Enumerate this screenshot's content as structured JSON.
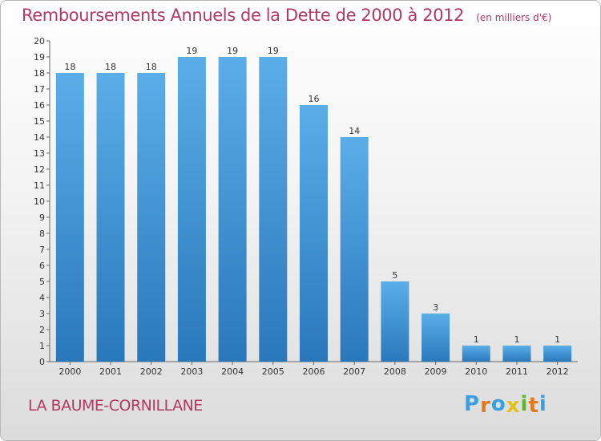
{
  "chart_data": {
    "type": "bar",
    "title": "Remboursements Annuels de la Dette de 2000 à 2012",
    "subtitle": "(en milliers d'€)",
    "categories": [
      "2000",
      "2001",
      "2002",
      "2003",
      "2004",
      "2005",
      "2006",
      "2007",
      "2008",
      "2009",
      "2010",
      "2011",
      "2012"
    ],
    "values": [
      18,
      18,
      18,
      19,
      19,
      19,
      16,
      14,
      5,
      3,
      1,
      1,
      1
    ],
    "ylim": [
      0,
      20
    ],
    "yticks": [
      0,
      1,
      2,
      3,
      4,
      5,
      6,
      7,
      8,
      9,
      10,
      11,
      12,
      13,
      14,
      15,
      16,
      17,
      18,
      19,
      20
    ],
    "grid": false,
    "bar_color": "#3a92d6",
    "title_color": "#b03a60"
  },
  "footer": {
    "place_name": "LA BAUME-CORNILLANE",
    "logo_letters": [
      "P",
      "r",
      "o",
      "x",
      "i",
      "t",
      "i"
    ],
    "logo_colors": [
      "#3aa0e0",
      "#e07a1a",
      "#3aa0e0",
      "#e0c21a",
      "#5ab82a",
      "#e07a1a",
      "#3aa0e0"
    ]
  }
}
